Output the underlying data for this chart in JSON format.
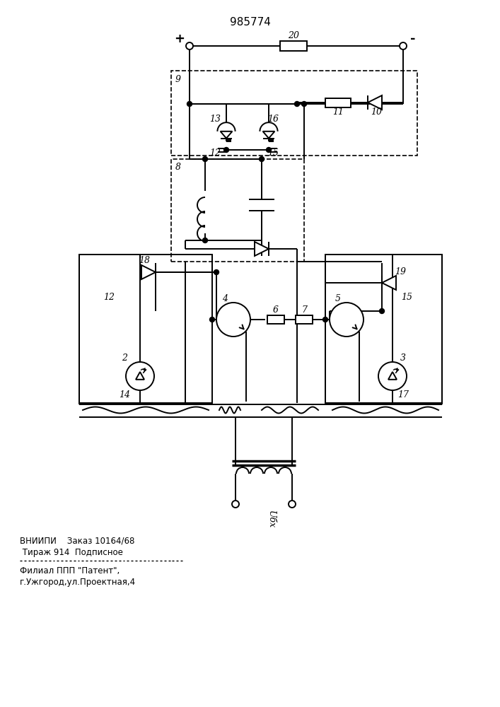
{
  "title": "985774",
  "bg_color": "#ffffff",
  "lc": "#000000",
  "footer_line1": "ВНИИПИ    Заказ 10164/68",
  "footer_line2": " Тираж 914  Подписное",
  "footer_line3": "Филиал ППП \"Патент\",",
  "footer_line4": "г.Ужгород,ул.Проектная,4",
  "label_Ubx": "Uбх",
  "lw": 1.4
}
